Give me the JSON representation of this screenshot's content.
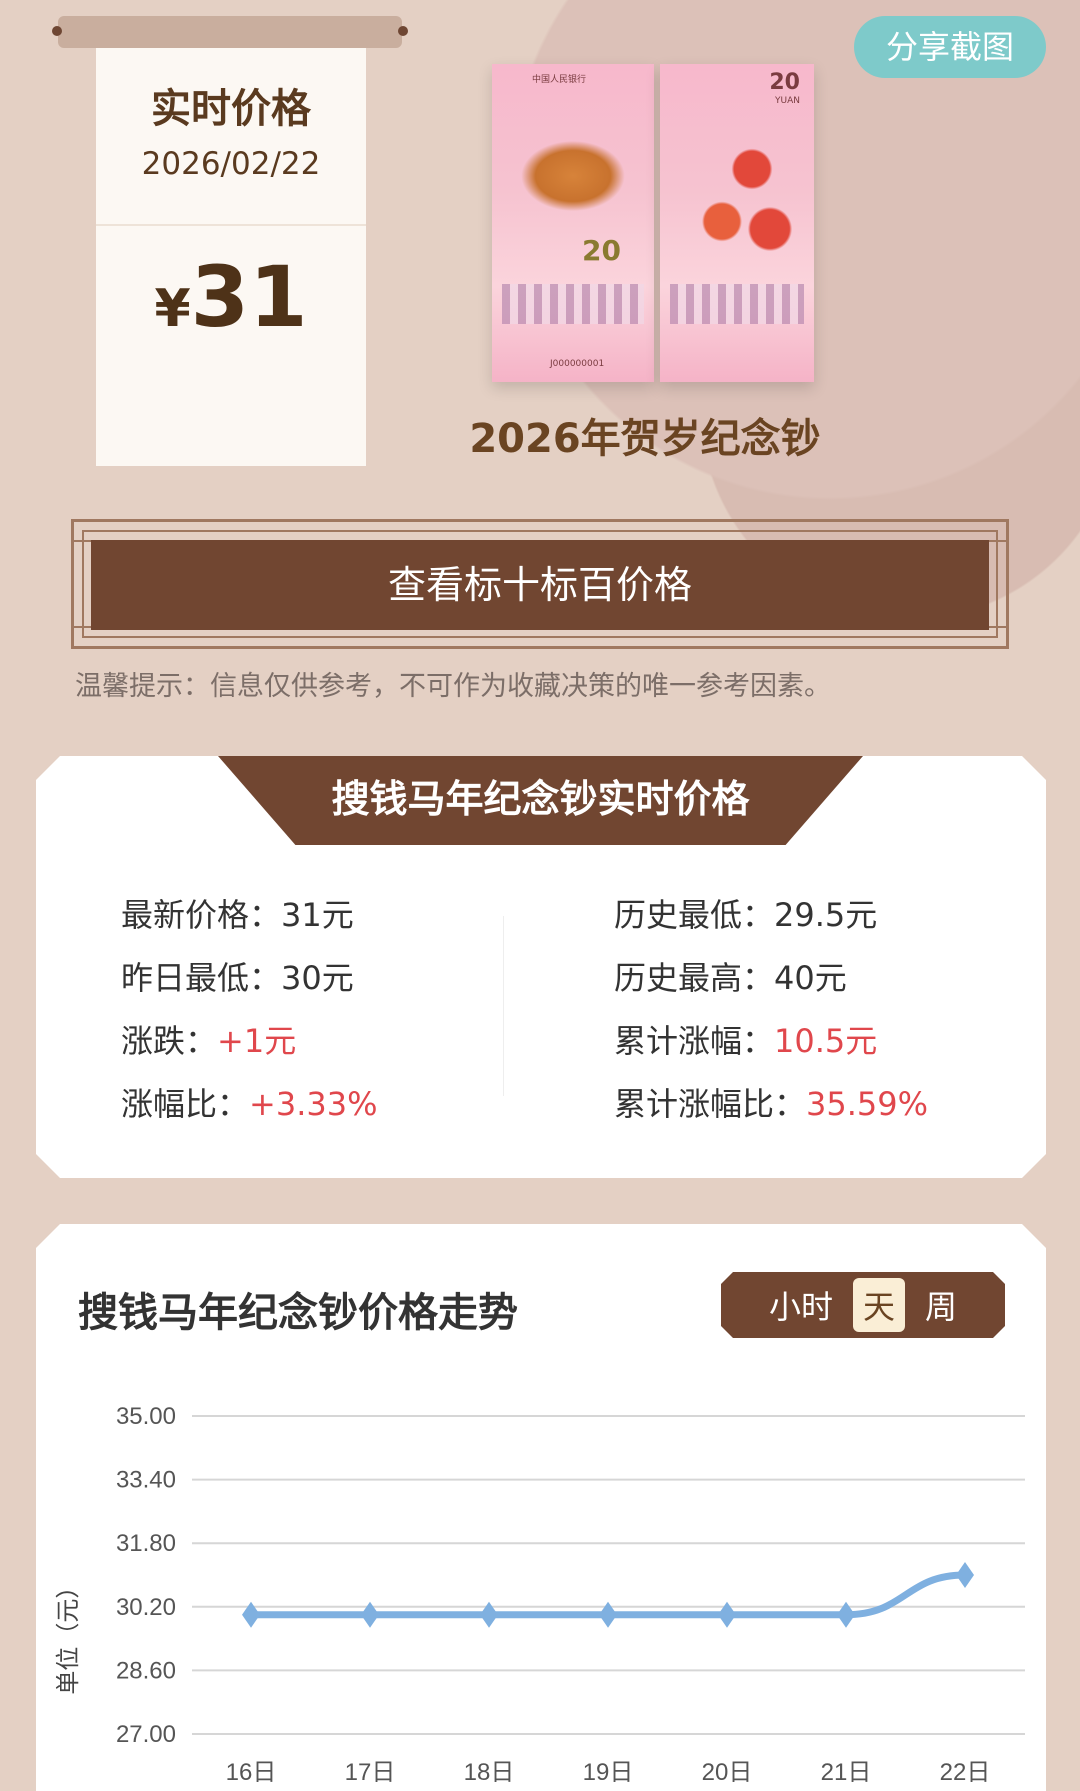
{
  "header": {
    "card_title": "实时价格",
    "date": "2026/02/22",
    "price_symbol": "¥",
    "price_value": "31",
    "share_label": "分享截图",
    "product_title": "2026年贺岁纪念钞",
    "banknote_artwork": {
      "bank": "中国人民银行",
      "denomination": "20",
      "currency": "YUAN",
      "serial": "J000000001"
    }
  },
  "view_button": "查看标十标百价格",
  "tip": "温馨提示：信息仅供参考，不可作为收藏决策的唯一参考因素。",
  "stats": {
    "title": "搜钱马年纪念钞实时价格",
    "left": [
      {
        "label": "最新价格：",
        "value": "31元",
        "highlight": false
      },
      {
        "label": "昨日最低：",
        "value": "30元",
        "highlight": false
      },
      {
        "label": "涨跌：",
        "value": "+1元",
        "highlight": true
      },
      {
        "label": "涨幅比：",
        "value": "+3.33%",
        "highlight": true
      }
    ],
    "right": [
      {
        "label": "历史最低：",
        "value": "29.5元",
        "highlight": false
      },
      {
        "label": "历史最高：",
        "value": "40元",
        "highlight": false
      },
      {
        "label": "累计涨幅：",
        "value": "10.5元",
        "highlight": true
      },
      {
        "label": "累计涨幅比：",
        "value": "35.59%",
        "highlight": true
      }
    ]
  },
  "trend": {
    "title": "搜钱马年纪念钞价格走势",
    "toggle": [
      {
        "label": "小时",
        "active": false
      },
      {
        "label": "天",
        "active": true
      },
      {
        "label": "周",
        "active": false
      }
    ]
  },
  "colors": {
    "brown": "#714631",
    "accent_red": "#e0474c",
    "line_blue": "#7fb0e0",
    "share_teal": "#7ecaca"
  },
  "chart_data": {
    "type": "line",
    "ylabel": "单位（元）",
    "categories": [
      "16日",
      "17日",
      "18日",
      "19日",
      "20日",
      "21日",
      "22日"
    ],
    "values": [
      30,
      30,
      30,
      30,
      30,
      30,
      31
    ],
    "yticks": [
      "35.00",
      "33.40",
      "31.80",
      "30.20",
      "28.60",
      "27.00"
    ],
    "ylim": [
      27,
      35
    ],
    "grid": true,
    "marker": "diamond",
    "smooth": true
  }
}
